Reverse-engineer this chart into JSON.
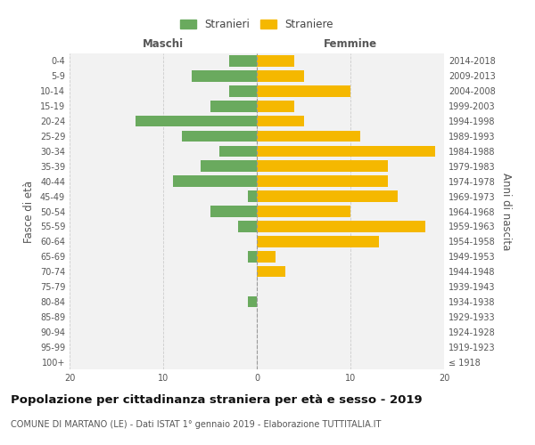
{
  "age_groups": [
    "100+",
    "95-99",
    "90-94",
    "85-89",
    "80-84",
    "75-79",
    "70-74",
    "65-69",
    "60-64",
    "55-59",
    "50-54",
    "45-49",
    "40-44",
    "35-39",
    "30-34",
    "25-29",
    "20-24",
    "15-19",
    "10-14",
    "5-9",
    "0-4"
  ],
  "birth_years": [
    "≤ 1918",
    "1919-1923",
    "1924-1928",
    "1929-1933",
    "1934-1938",
    "1939-1943",
    "1944-1948",
    "1949-1953",
    "1954-1958",
    "1959-1963",
    "1964-1968",
    "1969-1973",
    "1974-1978",
    "1979-1983",
    "1984-1988",
    "1989-1993",
    "1994-1998",
    "1999-2003",
    "2004-2008",
    "2009-2013",
    "2014-2018"
  ],
  "maschi": [
    0,
    0,
    0,
    0,
    1,
    0,
    0,
    1,
    0,
    2,
    5,
    1,
    9,
    6,
    4,
    8,
    13,
    5,
    3,
    7,
    3
  ],
  "femmine": [
    0,
    0,
    0,
    0,
    0,
    0,
    3,
    2,
    13,
    18,
    10,
    15,
    14,
    14,
    19,
    11,
    5,
    4,
    10,
    5,
    4
  ],
  "male_color": "#6aaa5e",
  "female_color": "#f5b800",
  "background_color": "#f2f2f2",
  "grid_color": "#cccccc",
  "title": "Popolazione per cittadinanza straniera per età e sesso - 2019",
  "subtitle": "COMUNE DI MARTANO (LE) - Dati ISTAT 1° gennaio 2019 - Elaborazione TUTTITALIA.IT",
  "xlabel_left": "Maschi",
  "xlabel_right": "Femmine",
  "ylabel_left": "Fasce di età",
  "ylabel_right": "Anni di nascita",
  "legend_male": "Stranieri",
  "legend_female": "Straniere",
  "xlim": 20,
  "title_fontsize": 9.5,
  "subtitle_fontsize": 7.0,
  "label_fontsize": 8.5,
  "tick_fontsize": 7.0,
  "header_fontsize": 8.5
}
